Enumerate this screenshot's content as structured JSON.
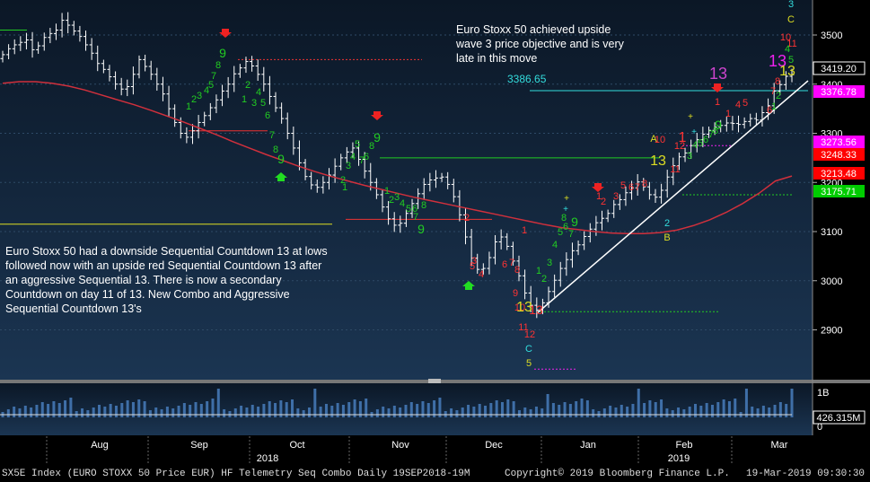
{
  "chart_data": {
    "type": "ohlc",
    "price_axis": {
      "ticks": [
        2900,
        3000,
        3100,
        3200,
        3300,
        3400,
        3500
      ],
      "range": [
        2820,
        3560
      ]
    },
    "volume_axis": {
      "ticks": [
        "1B",
        "0"
      ]
    },
    "months": [
      {
        "label": "Aug",
        "x": "2018-08"
      },
      {
        "label": "Sep",
        "x": "2018-09"
      },
      {
        "label": "Oct",
        "x": "2018-10"
      },
      {
        "label": "Nov",
        "x": "2018-11"
      },
      {
        "label": "Dec",
        "x": "2018-12"
      },
      {
        "label": "Jan",
        "x": "2019-01"
      },
      {
        "label": "Feb",
        "x": "2019-02"
      },
      {
        "label": "Mar",
        "x": "2019-03"
      }
    ],
    "years": [
      "2018",
      "2019"
    ],
    "closes": [
      3460,
      3472,
      3480,
      3485,
      3490,
      3470,
      3478,
      3495,
      3503,
      3510,
      3530,
      3520,
      3508,
      3497,
      3480,
      3463,
      3442,
      3430,
      3415,
      3400,
      3390,
      3395,
      3420,
      3450,
      3436,
      3420,
      3400,
      3380,
      3350,
      3322,
      3300,
      3292,
      3305,
      3322,
      3336,
      3352,
      3368,
      3386,
      3400,
      3421,
      3433,
      3446,
      3437,
      3420,
      3400,
      3375,
      3352,
      3330,
      3300,
      3270,
      3240,
      3212,
      3195,
      3190,
      3200,
      3215,
      3233,
      3250,
      3262,
      3270,
      3247,
      3223,
      3200,
      3175,
      3150,
      3126,
      3113,
      3117,
      3137,
      3157,
      3177,
      3196,
      3205,
      3209,
      3211,
      3196,
      3171,
      3134,
      3089,
      3046,
      3023,
      3025,
      3047,
      3079,
      3089,
      3070,
      3040,
      3010,
      2975,
      2950,
      2940,
      2955,
      2978,
      3001,
      3025,
      3043,
      3061,
      3073,
      3090,
      3105,
      3118,
      3127,
      3137,
      3155,
      3165,
      3179,
      3189,
      3201,
      3191,
      3175,
      3170,
      3184,
      3211,
      3234,
      3252,
      3260,
      3275,
      3287,
      3298,
      3306,
      3313,
      3316,
      3321,
      3320,
      3318,
      3324,
      3330,
      3327,
      3342,
      3356,
      3386,
      3399,
      3416,
      3419.2
    ],
    "moving_average": [
      3402,
      3405,
      3405,
      3402,
      3396,
      3388,
      3378,
      3368,
      3358,
      3347,
      3335,
      3323,
      3310,
      3297,
      3283,
      3270,
      3257,
      3245,
      3233,
      3222,
      3212,
      3203,
      3194,
      3186,
      3178,
      3170,
      3163,
      3156,
      3149,
      3142,
      3135,
      3128,
      3121,
      3114,
      3108,
      3104,
      3100,
      3097,
      3096,
      3096,
      3098,
      3103,
      3112,
      3124,
      3139,
      3157,
      3178,
      3203,
      3213
    ],
    "price_tags": [
      {
        "value": "3419.20",
        "color": "#ffffff"
      },
      {
        "value": "3376.78",
        "color": "#ff00ff"
      },
      {
        "value": "3273.56",
        "color": "#ff00ff"
      },
      {
        "value": "3248.33",
        "color": "#ff0000"
      },
      {
        "value": "3213.48",
        "color": "#ff0000"
      },
      {
        "value": "3175.71",
        "color": "#00cc00"
      }
    ],
    "volume_tag": "426.315M",
    "level_labels": [
      {
        "value": "3386.65",
        "color": "#33dddd"
      }
    ],
    "sequential_labels": [
      {
        "text": "9",
        "c": "#22cc22",
        "s": 14
      },
      {
        "text": "8",
        "c": "#22cc22",
        "s": 11
      },
      {
        "text": "7",
        "c": "#22cc22",
        "s": 11
      },
      {
        "text": "5",
        "c": "#22cc22",
        "s": 11
      },
      {
        "text": "4",
        "c": "#22cc22",
        "s": 11
      },
      {
        "text": "3",
        "c": "#22cc22",
        "s": 11
      },
      {
        "text": "2",
        "c": "#22cc22",
        "s": 11
      },
      {
        "text": "1",
        "c": "#22cc22",
        "s": 11
      },
      {
        "text": "1",
        "c": "#22cc22",
        "s": 11
      },
      {
        "text": "2",
        "c": "#22cc22",
        "s": 11
      },
      {
        "text": "3",
        "c": "#22cc22",
        "s": 11
      },
      {
        "text": "4",
        "c": "#22cc22",
        "s": 11
      },
      {
        "text": "5",
        "c": "#22cc22",
        "s": 11
      },
      {
        "text": "6",
        "c": "#22cc22",
        "s": 11
      },
      {
        "text": "7",
        "c": "#22cc22",
        "s": 11
      },
      {
        "text": "8",
        "c": "#22cc22",
        "s": 11
      },
      {
        "text": "9",
        "c": "#22cc22",
        "s": 14
      },
      {
        "text": "9",
        "c": "#22cc22",
        "s": 14
      },
      {
        "text": "8",
        "c": "#22cc22",
        "s": 11
      },
      {
        "text": "5",
        "c": "#22cc22",
        "s": 11
      },
      {
        "text": "4",
        "c": "#22cc22",
        "s": 11
      },
      {
        "text": "6",
        "c": "#22cc22",
        "s": 11
      },
      {
        "text": "7",
        "c": "#22cc22",
        "s": 11
      },
      {
        "text": "3",
        "c": "#22cc22",
        "s": 11
      },
      {
        "text": "2",
        "c": "#22cc22",
        "s": 11
      },
      {
        "text": "1",
        "c": "#22cc22",
        "s": 11
      },
      {
        "text": "1",
        "c": "#22cc22",
        "s": 11
      },
      {
        "text": "2",
        "c": "#22cc22",
        "s": 11
      },
      {
        "text": "3",
        "c": "#22cc22",
        "s": 11
      },
      {
        "text": "4",
        "c": "#22cc22",
        "s": 11
      },
      {
        "text": "5",
        "c": "#22cc22",
        "s": 11
      },
      {
        "text": "6",
        "c": "#22cc22",
        "s": 11
      },
      {
        "text": "8",
        "c": "#22cc22",
        "s": 11
      },
      {
        "text": "7",
        "c": "#22cc22",
        "s": 11
      },
      {
        "text": "9",
        "c": "#22cc22",
        "s": 14
      },
      {
        "text": "1",
        "c": "#ff3333",
        "s": 11
      },
      {
        "text": "2",
        "c": "#ff3333",
        "s": 11
      },
      {
        "text": "3",
        "c": "#ff3333",
        "s": 11
      },
      {
        "text": "4",
        "c": "#ff3333",
        "s": 11
      },
      {
        "text": "5",
        "c": "#ff3333",
        "s": 11
      },
      {
        "text": "6",
        "c": "#ff3333",
        "s": 11
      },
      {
        "text": "7",
        "c": "#ff3333",
        "s": 11
      },
      {
        "text": "8",
        "c": "#ff3333",
        "s": 11
      },
      {
        "text": "9",
        "c": "#ff3333",
        "s": 11
      },
      {
        "text": "10",
        "c": "#ff3333",
        "s": 11
      },
      {
        "text": "11",
        "c": "#ff3333",
        "s": 11
      },
      {
        "text": "12",
        "c": "#ff3333",
        "s": 11
      },
      {
        "text": "13",
        "c": "#ff3333",
        "s": 14
      },
      {
        "text": "13",
        "c": "#dddd22",
        "s": 16
      },
      {
        "text": "C",
        "c": "#33dddd",
        "s": 11
      },
      {
        "text": "5",
        "c": "#dddd22",
        "s": 11
      },
      {
        "text": "1",
        "c": "#22cc22",
        "s": 11
      },
      {
        "text": "2",
        "c": "#22cc22",
        "s": 11
      },
      {
        "text": "3",
        "c": "#22cc22",
        "s": 11
      },
      {
        "text": "4",
        "c": "#22cc22",
        "s": 11
      },
      {
        "text": "5",
        "c": "#22cc22",
        "s": 11
      },
      {
        "text": "6",
        "c": "#22cc22",
        "s": 11
      },
      {
        "text": "7",
        "c": "#22cc22",
        "s": 11
      },
      {
        "text": "8",
        "c": "#22cc22",
        "s": 11
      },
      {
        "text": "9",
        "c": "#22cc22",
        "s": 14
      },
      {
        "text": "1",
        "c": "#ff3333",
        "s": 11
      },
      {
        "text": "2",
        "c": "#ff3333",
        "s": 11
      },
      {
        "text": "3",
        "c": "#ff3333",
        "s": 11
      },
      {
        "text": "5",
        "c": "#ff3333",
        "s": 11
      },
      {
        "text": "6",
        "c": "#ff3333",
        "s": 11
      },
      {
        "text": "7",
        "c": "#ff3333",
        "s": 11
      },
      {
        "text": "8",
        "c": "#ff3333",
        "s": 11
      },
      {
        "text": "A",
        "c": "#dddd22",
        "s": 11
      },
      {
        "text": "10",
        "c": "#ff3333",
        "s": 11
      },
      {
        "text": "13",
        "c": "#dddd22",
        "s": 16
      },
      {
        "text": "2",
        "c": "#33dddd",
        "s": 11
      },
      {
        "text": "B",
        "c": "#dddd22",
        "s": 11
      },
      {
        "text": "11",
        "c": "#ff3333",
        "s": 11
      },
      {
        "text": "12",
        "c": "#ff3333",
        "s": 11
      },
      {
        "text": "1",
        "c": "#ff3333",
        "s": 16
      },
      {
        "text": "1",
        "c": "#ff3333",
        "s": 11
      },
      {
        "text": "3",
        "c": "#22cc22",
        "s": 11
      },
      {
        "text": "4",
        "c": "#22cc22",
        "s": 11
      },
      {
        "text": "5",
        "c": "#22cc22",
        "s": 11
      },
      {
        "text": "6",
        "c": "#22cc22",
        "s": 11
      },
      {
        "text": "7",
        "c": "#22cc22",
        "s": 11
      },
      {
        "text": "8",
        "c": "#22cc22",
        "s": 11
      },
      {
        "text": "9",
        "c": "#22cc22",
        "s": 14
      },
      {
        "text": "13",
        "c": "#cc44cc",
        "s": 18
      },
      {
        "text": "1",
        "c": "#ff3333",
        "s": 11
      },
      {
        "text": "4",
        "c": "#ff3333",
        "s": 11
      },
      {
        "text": "5",
        "c": "#ff3333",
        "s": 11
      },
      {
        "text": "6",
        "c": "#ff3333",
        "s": 11
      },
      {
        "text": "1",
        "c": "#22cc22",
        "s": 11
      },
      {
        "text": "2",
        "c": "#22cc22",
        "s": 11
      },
      {
        "text": "3",
        "c": "#33dddd",
        "s": 11
      },
      {
        "text": "C",
        "c": "#dddd22",
        "s": 11
      },
      {
        "text": "10",
        "c": "#ff3333",
        "s": 11
      },
      {
        "text": "11",
        "c": "#ff3333",
        "s": 11
      },
      {
        "text": "5",
        "c": "#22cc22",
        "s": 11
      },
      {
        "text": "4",
        "c": "#22cc22",
        "s": 11
      },
      {
        "text": "13",
        "c": "#ee22ee",
        "s": 18
      },
      {
        "text": "13",
        "c": "#dddd22",
        "s": 16
      },
      {
        "text": "8",
        "c": "#ff3333",
        "s": 11
      },
      {
        "text": "7",
        "c": "#ff3333",
        "s": 11
      }
    ]
  },
  "annotations": {
    "top_note": "Euro Stoxx 50 achieved upside\nwave 3 price objective and is very\nlate in this move",
    "left_note": "Euro Stoxx 50 had a downside Sequential Countdown 13 at lows\nfollowed now with an upside red Sequential Countdown 13 after\nan aggressive Sequential 13. There is now a secondary\nCountdown on day 11 of 13.   New Combo and Aggressive\nSequential Countdown 13's"
  },
  "footer": {
    "left": "SX5E Index (EURO STOXX 50 Price EUR) HF Telemetry Seq Combo  Daily 19SEP2018-19M",
    "center": "Copyright© 2019 Bloomberg Finance L.P.",
    "right": "19-Mar-2019 09:30:30"
  },
  "colors": {
    "background_top": "#0b1726",
    "background_bottom": "#1b3552",
    "moving_average": "#d0303c",
    "trendline": "#ffffff",
    "bars": "#ffffff"
  }
}
